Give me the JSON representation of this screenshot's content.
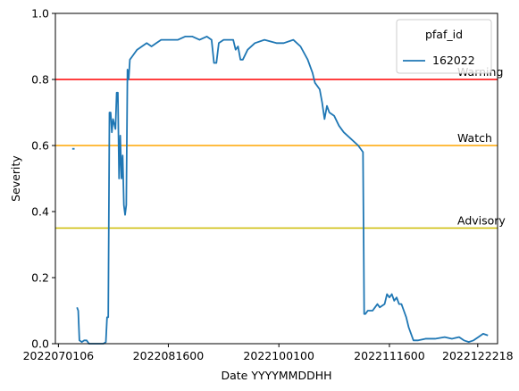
{
  "chart_data": {
    "type": "line",
    "xlabel": "Date YYYYMMDDHH",
    "ylabel": "Severity",
    "xlim": [
      "2022-06-30",
      "2022-12-31"
    ],
    "ylim": [
      0,
      1
    ],
    "x_tick_labels": [
      "2022070106",
      "2022081600",
      "2022100100",
      "2022111600",
      "2022122218"
    ],
    "x_ticks": [
      "2022-07-01T06",
      "2022-08-16T00",
      "2022-10-01T00",
      "2022-11-16T00",
      "2022-12-22T18"
    ],
    "y_ticks": [
      0.0,
      0.2,
      0.4,
      0.6,
      0.8,
      1.0
    ],
    "y_tick_labels": [
      "0.0",
      "0.2",
      "0.4",
      "0.6",
      "0.8",
      "1.0"
    ],
    "grid": false,
    "legend": {
      "title": "pfaf_id",
      "placement": "top-right",
      "entries": [
        {
          "name": "162022",
          "color": "#1f77b4"
        }
      ]
    },
    "reference_lines": [
      {
        "label": "Warning",
        "y": 0.8,
        "color": "#ff0000"
      },
      {
        "label": "Watch",
        "y": 0.6,
        "color": "#ffa500"
      },
      {
        "label": "Advisory",
        "y": 0.35,
        "color": "#ccbb00"
      }
    ],
    "series": [
      {
        "name": "162022",
        "color": "#1f77b4",
        "segments": [
          [
            [
              "2022-07-07",
              0.59
            ],
            [
              "2022-07-08",
              0.59
            ]
          ],
          [
            [
              "2022-07-09",
              0.11
            ],
            [
              "2022-07-09T12",
              0.1
            ],
            [
              "2022-07-10",
              0.01
            ],
            [
              "2022-07-11",
              0.005
            ],
            [
              "2022-07-12",
              0.01
            ],
            [
              "2022-07-13",
              0.01
            ],
            [
              "2022-07-14",
              0.0
            ],
            [
              "2022-07-16",
              0.0
            ],
            [
              "2022-07-18",
              0.0
            ],
            [
              "2022-07-20",
              0.0
            ],
            [
              "2022-07-21",
              0.005
            ],
            [
              "2022-07-21T12",
              0.08
            ],
            [
              "2022-07-22",
              0.08
            ],
            [
              "2022-07-22T12",
              0.7
            ],
            [
              "2022-07-23",
              0.7
            ],
            [
              "2022-07-23T12",
              0.64
            ],
            [
              "2022-07-24",
              0.68
            ],
            [
              "2022-07-25",
              0.65
            ],
            [
              "2022-07-25T12",
              0.76
            ],
            [
              "2022-07-26",
              0.76
            ],
            [
              "2022-07-26T12",
              0.5
            ],
            [
              "2022-07-27",
              0.63
            ],
            [
              "2022-07-27T12",
              0.5
            ],
            [
              "2022-07-28",
              0.57
            ],
            [
              "2022-07-28T12",
              0.42
            ],
            [
              "2022-07-29",
              0.39
            ],
            [
              "2022-07-29T12",
              0.42
            ],
            [
              "2022-07-30",
              0.83
            ],
            [
              "2022-07-30T12",
              0.8
            ],
            [
              "2022-07-31",
              0.86
            ],
            [
              "2022-08-01",
              0.87
            ],
            [
              "2022-08-02",
              0.88
            ],
            [
              "2022-08-03",
              0.89
            ],
            [
              "2022-08-05",
              0.9
            ],
            [
              "2022-08-07",
              0.91
            ],
            [
              "2022-08-09",
              0.9
            ],
            [
              "2022-08-11",
              0.91
            ],
            [
              "2022-08-13",
              0.92
            ],
            [
              "2022-08-16",
              0.92
            ],
            [
              "2022-08-20",
              0.92
            ],
            [
              "2022-08-23",
              0.93
            ],
            [
              "2022-08-26",
              0.93
            ],
            [
              "2022-08-29",
              0.92
            ],
            [
              "2022-09-01",
              0.93
            ],
            [
              "2022-09-03",
              0.92
            ],
            [
              "2022-09-04",
              0.85
            ],
            [
              "2022-09-05",
              0.85
            ],
            [
              "2022-09-06",
              0.91
            ],
            [
              "2022-09-08",
              0.92
            ],
            [
              "2022-09-10",
              0.92
            ],
            [
              "2022-09-12",
              0.92
            ],
            [
              "2022-09-13",
              0.89
            ],
            [
              "2022-09-14",
              0.9
            ],
            [
              "2022-09-15",
              0.86
            ],
            [
              "2022-09-16",
              0.86
            ],
            [
              "2022-09-18",
              0.89
            ],
            [
              "2022-09-21",
              0.91
            ],
            [
              "2022-09-25",
              0.92
            ],
            [
              "2022-09-30",
              0.91
            ],
            [
              "2022-10-03",
              0.91
            ],
            [
              "2022-10-07",
              0.92
            ],
            [
              "2022-10-10",
              0.9
            ],
            [
              "2022-10-13",
              0.86
            ],
            [
              "2022-10-15",
              0.82
            ],
            [
              "2022-10-16",
              0.79
            ],
            [
              "2022-10-18",
              0.77
            ],
            [
              "2022-10-19",
              0.73
            ],
            [
              "2022-10-20",
              0.68
            ],
            [
              "2022-10-21",
              0.72
            ],
            [
              "2022-10-22",
              0.7
            ],
            [
              "2022-10-24",
              0.69
            ],
            [
              "2022-10-26",
              0.66
            ],
            [
              "2022-10-28",
              0.64
            ],
            [
              "2022-10-31",
              0.62
            ],
            [
              "2022-11-03",
              0.6
            ],
            [
              "2022-11-05",
              0.58
            ],
            [
              "2022-11-05T12",
              0.09
            ],
            [
              "2022-11-06",
              0.09
            ],
            [
              "2022-11-07",
              0.1
            ],
            [
              "2022-11-09",
              0.1
            ],
            [
              "2022-11-10",
              0.11
            ],
            [
              "2022-11-11",
              0.12
            ],
            [
              "2022-11-12",
              0.11
            ],
            [
              "2022-11-14",
              0.12
            ],
            [
              "2022-11-15",
              0.15
            ],
            [
              "2022-11-16",
              0.14
            ],
            [
              "2022-11-17",
              0.15
            ],
            [
              "2022-11-18",
              0.13
            ],
            [
              "2022-11-19",
              0.14
            ],
            [
              "2022-11-20",
              0.12
            ],
            [
              "2022-11-21",
              0.12
            ],
            [
              "2022-11-22",
              0.1
            ],
            [
              "2022-11-23",
              0.08
            ],
            [
              "2022-11-24",
              0.05
            ],
            [
              "2022-11-25",
              0.03
            ],
            [
              "2022-11-26",
              0.01
            ],
            [
              "2022-11-28",
              0.01
            ],
            [
              "2022-12-01",
              0.015
            ],
            [
              "2022-12-05",
              0.015
            ],
            [
              "2022-12-09",
              0.02
            ],
            [
              "2022-12-12",
              0.015
            ],
            [
              "2022-12-15",
              0.02
            ],
            [
              "2022-12-17",
              0.01
            ],
            [
              "2022-12-19",
              0.005
            ],
            [
              "2022-12-21",
              0.01
            ],
            [
              "2022-12-23",
              0.02
            ],
            [
              "2022-12-25",
              0.03
            ],
            [
              "2022-12-27",
              0.025
            ]
          ]
        ]
      }
    ]
  }
}
